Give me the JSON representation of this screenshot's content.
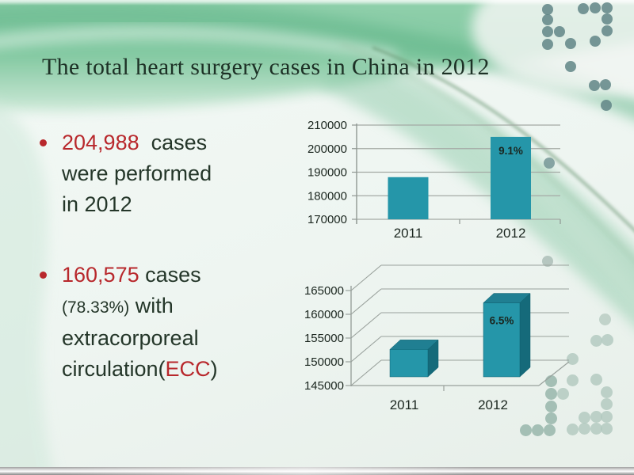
{
  "slide": {
    "title": "The total heart surgery cases in China in 2012",
    "bullets": [
      {
        "lines": [
          [
            {
              "t": "204,988  ",
              "s": "red"
            },
            {
              "t": "cases",
              "s": "dark"
            }
          ],
          [
            {
              "t": "were performed",
              "s": "dark"
            }
          ],
          [
            {
              "t": "in 2012",
              "s": "dark"
            }
          ]
        ]
      },
      {
        "lines": [
          [
            {
              "t": "160,575",
              "s": "red"
            },
            {
              "t": " cases",
              "s": "dark"
            }
          ],
          [
            {
              "t": "(78.33%)",
              "s": "small"
            },
            {
              "t": " with",
              "s": "dark"
            }
          ],
          [
            {
              "t": "extracorporeal",
              "s": "dark"
            }
          ],
          [
            {
              "t": "circulation(",
              "s": "dark"
            },
            {
              "t": "ECC",
              "s": "red"
            },
            {
              "t": ")",
              "s": "dark"
            }
          ]
        ]
      }
    ]
  },
  "colors": {
    "accent_red": "#b8282c",
    "bar_front": "#2596a9",
    "bar_top": "#207f92",
    "bar_side": "#156a7a",
    "grid_gray": "#a4aaa5",
    "tick_text": "#1b261f"
  },
  "chart_data": [
    {
      "type": "bar",
      "style": "flat",
      "title": "",
      "categories": [
        "2011",
        "2012"
      ],
      "values": [
        187890,
        204988
      ],
      "bar_labels": [
        "",
        "9.1%"
      ],
      "ylim": [
        170000,
        210000
      ],
      "yticks": [
        210000,
        200000,
        190000,
        180000,
        170000
      ],
      "grid": true,
      "legend": "none"
    },
    {
      "type": "bar",
      "style": "3d",
      "title": "",
      "categories": [
        "2011",
        "2012"
      ],
      "values": [
        150775,
        160575
      ],
      "bar_labels": [
        "",
        "6.5%"
      ],
      "ylim": [
        145000,
        165000
      ],
      "yticks": [
        165000,
        160000,
        155000,
        150000,
        145000
      ],
      "grid": true,
      "legend": "none"
    }
  ]
}
